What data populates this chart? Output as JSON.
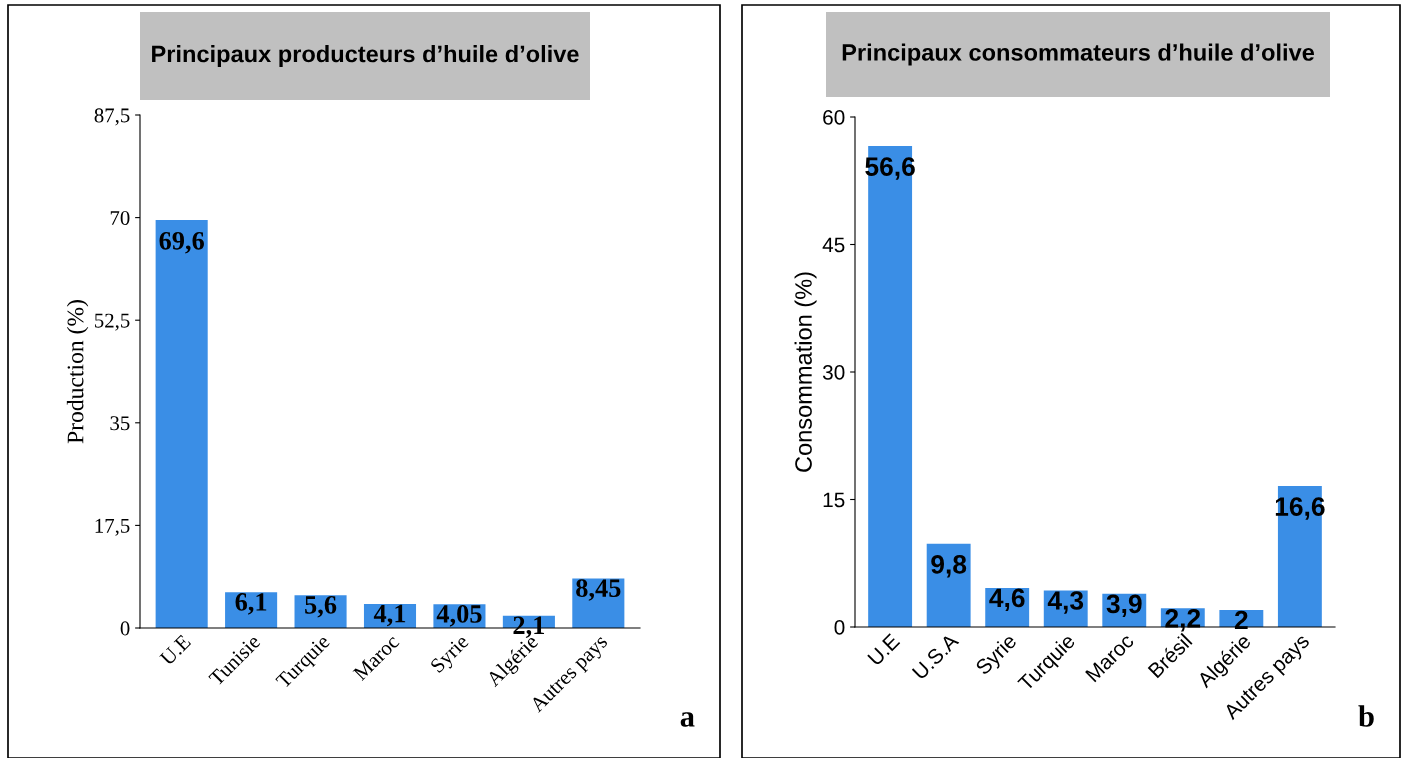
{
  "chart_data": [
    {
      "type": "bar",
      "title": "Principaux producteurs d’huile d’olive",
      "ylabel": "Production (%)",
      "categories": [
        "U.E",
        "Tunisie",
        "Turquie",
        "Maroc",
        "Syrie",
        "Algérie",
        "Autres pays"
      ],
      "values": [
        69.6,
        6.1,
        5.6,
        4.1,
        4.05,
        2.1,
        8.45
      ],
      "color": "#3a8ee6",
      "value_labels": [
        "69,6",
        "6,1",
        "5,6",
        "4,1",
        "4,05",
        "2,1",
        "8,45"
      ],
      "ylim": [
        0,
        87.5
      ],
      "yticks": [
        0,
        {
          "value": 17.5,
          "label": "17,5"
        },
        35,
        {
          "value": 52.5,
          "label": "52,5"
        },
        70,
        {
          "value": 87.5,
          "label": "87,5"
        }
      ],
      "grid": false,
      "legend": false,
      "annotations": [
        "a"
      ]
    },
    {
      "type": "bar",
      "title": "Principaux consommateurs d’huile d’olive",
      "ylabel": "Consommation (%)",
      "categories": [
        "U.E",
        "U.S.A",
        "Syrie",
        "Turquie",
        "Maroc",
        "Brésil",
        "Algérie",
        "Autres pays"
      ],
      "values": [
        56.6,
        9.8,
        4.6,
        4.3,
        3.9,
        2.2,
        2,
        16.6
      ],
      "color": "#3a8ee6",
      "value_labels": [
        "56,6",
        "9,8",
        "4,6",
        "4,3",
        "3,9",
        "2,2",
        "2",
        "16,6"
      ],
      "ylim": [
        0,
        60
      ],
      "yticks": [
        0,
        15,
        30,
        45,
        60
      ],
      "grid": false,
      "legend": false,
      "annotations": [
        "b"
      ]
    }
  ]
}
